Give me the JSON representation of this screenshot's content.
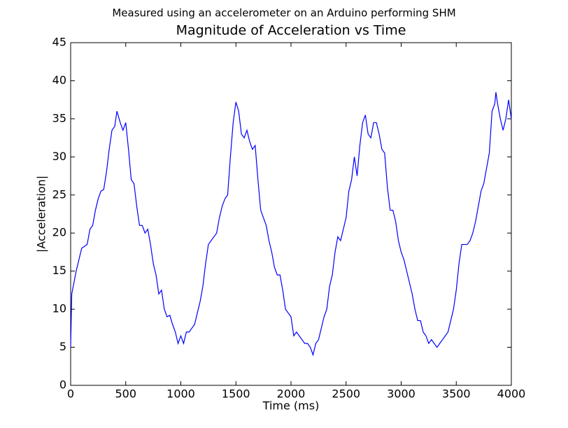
{
  "chart_data": {
    "type": "line",
    "subtitle": "Measured using an accelerometer on an Arduino performing SHM",
    "title": "Magnitude of Acceleration vs Time",
    "x_label": "Time (ms)",
    "y_label": "|Acceleration|",
    "x": [
      0,
      10,
      50,
      75,
      100,
      150,
      175,
      200,
      225,
      250,
      275,
      300,
      325,
      350,
      375,
      400,
      420,
      450,
      475,
      500,
      525,
      550,
      575,
      600,
      625,
      650,
      675,
      700,
      725,
      750,
      775,
      800,
      825,
      850,
      875,
      900,
      925,
      950,
      975,
      1000,
      1025,
      1050,
      1075,
      1100,
      1125,
      1150,
      1175,
      1200,
      1225,
      1250,
      1275,
      1300,
      1325,
      1350,
      1375,
      1400,
      1425,
      1450,
      1475,
      1500,
      1525,
      1550,
      1575,
      1600,
      1625,
      1650,
      1675,
      1700,
      1725,
      1750,
      1775,
      1800,
      1825,
      1850,
      1875,
      1900,
      1925,
      1950,
      1975,
      2000,
      2025,
      2050,
      2075,
      2100,
      2125,
      2150,
      2175,
      2200,
      2225,
      2250,
      2275,
      2300,
      2325,
      2350,
      2375,
      2400,
      2425,
      2450,
      2475,
      2500,
      2525,
      2550,
      2575,
      2600,
      2625,
      2650,
      2675,
      2700,
      2725,
      2750,
      2775,
      2800,
      2825,
      2850,
      2875,
      2900,
      2925,
      2950,
      2975,
      3000,
      3025,
      3050,
      3075,
      3100,
      3125,
      3150,
      3175,
      3200,
      3225,
      3250,
      3275,
      3300,
      3325,
      3350,
      3375,
      3400,
      3425,
      3450,
      3475,
      3500,
      3525,
      3550,
      3575,
      3600,
      3625,
      3650,
      3675,
      3700,
      3725,
      3750,
      3775,
      3800,
      3825,
      3850,
      3860,
      3875,
      3900,
      3925,
      3950,
      3975,
      4000
    ],
    "series": [
      {
        "name": "acceleration",
        "color": "#0000ff",
        "values": [
          5,
          12,
          15,
          16.5,
          18,
          18.5,
          20.5,
          21,
          23,
          24.5,
          25.5,
          25.7,
          28,
          31,
          33.5,
          34,
          36,
          34.5,
          33.5,
          34.5,
          31,
          27,
          26.5,
          23.5,
          21,
          21,
          20,
          20.5,
          18.5,
          16,
          14.5,
          12,
          12.5,
          10,
          9,
          9.2,
          8,
          7,
          5.5,
          6.5,
          5.5,
          7,
          7,
          7.5,
          8,
          9.5,
          11,
          13,
          16,
          18.5,
          19,
          19.5,
          20,
          22,
          23.5,
          24.5,
          25,
          30,
          34.5,
          37.2,
          36,
          33,
          32.5,
          33.5,
          32,
          31,
          31.5,
          27,
          23,
          22,
          21,
          19,
          17.5,
          15.5,
          14.5,
          14.5,
          12.5,
          10,
          9.5,
          9,
          6.5,
          7,
          6.5,
          6,
          5.5,
          5.5,
          5,
          4,
          5.5,
          6,
          7.5,
          9,
          10,
          13,
          14.5,
          17.5,
          19.5,
          19,
          20.5,
          22,
          25.5,
          27,
          30,
          27.5,
          31.5,
          34.5,
          35.5,
          33,
          32.5,
          34.5,
          34.5,
          33,
          31,
          30.5,
          26,
          23,
          23,
          21.5,
          19,
          17.5,
          16.5,
          15,
          13.5,
          12,
          10,
          8.5,
          8.5,
          7,
          6.5,
          5.5,
          6,
          5.5,
          5,
          5.5,
          6,
          6.5,
          7,
          8.5,
          10,
          12.5,
          16,
          18.5,
          18.5,
          18.5,
          19,
          20,
          21.5,
          23.5,
          25.5,
          26.5,
          28.5,
          30.5,
          36,
          37,
          38.5,
          37,
          35,
          33.5,
          35,
          37.5,
          35
        ]
      }
    ],
    "xlim": [
      0,
      4000
    ],
    "xticks": [
      0,
      500,
      1000,
      1500,
      2000,
      2500,
      3000,
      3500,
      4000
    ],
    "ylim": [
      0,
      45
    ],
    "yticks": [
      0,
      5,
      10,
      15,
      20,
      25,
      30,
      35,
      40,
      45
    ]
  }
}
